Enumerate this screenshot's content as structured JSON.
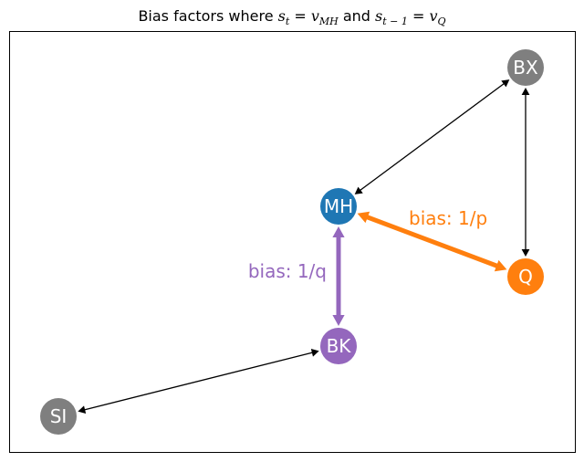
{
  "title": {
    "prefix": "Bias factors where ",
    "s": "s",
    "sub_t": "t",
    "eq1": " = ",
    "v": "v",
    "sub_mh": "MH",
    "and": " and ",
    "sub_tm1": "t − 1",
    "eq2": " = ",
    "sub_q": "Q"
  },
  "colors": {
    "gray": "#7f7f7f",
    "blue": "#1f77b4",
    "orange": "#ff7f0e",
    "purple": "#9467bd",
    "black": "#000000"
  },
  "nodes": [
    {
      "id": "BX",
      "label": "BX",
      "color": "gray"
    },
    {
      "id": "MH",
      "label": "MH",
      "color": "blue"
    },
    {
      "id": "Q",
      "label": "Q",
      "color": "orange"
    },
    {
      "id": "BK",
      "label": "BK",
      "color": "purple"
    },
    {
      "id": "SI",
      "label": "SI",
      "color": "gray"
    }
  ],
  "edges": [
    {
      "from": "MH",
      "to": "BX",
      "bidirectional": true,
      "color": "black",
      "label": ""
    },
    {
      "from": "BX",
      "to": "Q",
      "bidirectional": true,
      "color": "black",
      "label": ""
    },
    {
      "from": "SI",
      "to": "BK",
      "bidirectional": true,
      "color": "black",
      "label": ""
    },
    {
      "from": "MH",
      "to": "Q",
      "bidirectional": true,
      "color": "orange",
      "label": "bias: 1/p"
    },
    {
      "from": "MH",
      "to": "BK",
      "bidirectional": true,
      "color": "purple",
      "label": "bias: 1/q"
    }
  ]
}
